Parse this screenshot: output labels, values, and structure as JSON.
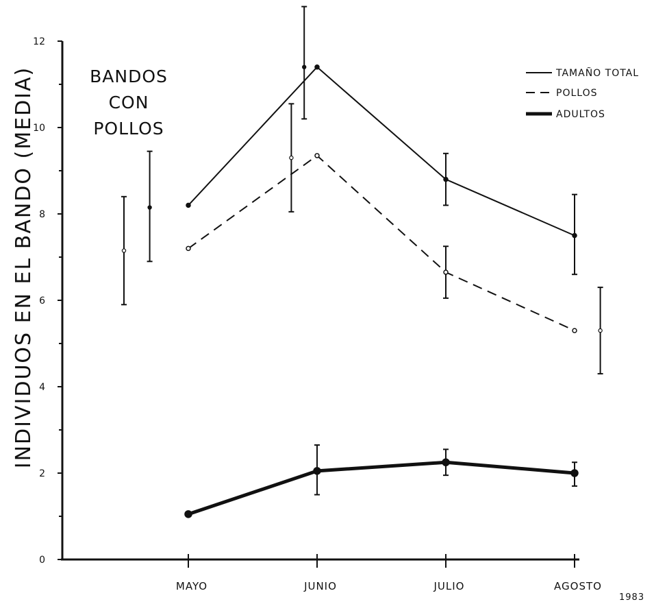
{
  "chart_data": {
    "type": "line",
    "title": "",
    "annotation_lines": [
      "BANDOS",
      "CON",
      "POLLOS"
    ],
    "ylabel": "INDIVIDUOS EN EL BANDO (MEDIA)",
    "xlabel": "",
    "year_label": "1983",
    "ylim": [
      0,
      12
    ],
    "y_ticks": [
      0,
      2,
      4,
      6,
      8,
      10,
      12
    ],
    "y_tick_labels": [
      "0",
      "2",
      "4",
      "6",
      "8",
      "10",
      "12"
    ],
    "categories": [
      "MAYO",
      "JUNIO",
      "JULIO",
      "AGOSTO"
    ],
    "legend_position": "top-right",
    "grid": false,
    "series": [
      {
        "name": "TAMAÑO TOTAL",
        "style": "solid",
        "values": [
          8.2,
          11.4,
          8.8,
          7.5
        ],
        "errors": [
          {
            "offset": -0.3,
            "mean": 8.15,
            "low": 6.9,
            "high": 9.45
          },
          {
            "offset": -0.1,
            "mean": 11.4,
            "low": 10.2,
            "high": 12.8
          },
          {
            "offset": 0,
            "mean": 8.8,
            "low": 8.2,
            "high": 9.4
          },
          {
            "offset": 0,
            "mean": 7.5,
            "low": 6.6,
            "high": 8.45
          }
        ]
      },
      {
        "name": "POLLOS",
        "style": "dashed",
        "values": [
          7.2,
          9.35,
          6.65,
          5.3
        ],
        "errors": [
          {
            "offset": -0.5,
            "mean": 7.15,
            "low": 5.9,
            "high": 8.4
          },
          {
            "offset": -0.2,
            "mean": 9.3,
            "low": 8.05,
            "high": 10.55
          },
          {
            "offset": 0,
            "mean": 6.65,
            "low": 6.05,
            "high": 7.25
          },
          {
            "offset": 0.2,
            "mean": 5.3,
            "low": 4.3,
            "high": 6.3
          }
        ]
      },
      {
        "name": "ADULTOS",
        "style": "thick",
        "values": [
          1.05,
          2.05,
          2.25,
          2.0
        ],
        "errors": [
          null,
          {
            "offset": 0,
            "mean": 2.05,
            "low": 1.5,
            "high": 2.65
          },
          {
            "offset": 0,
            "mean": 2.25,
            "low": 1.95,
            "high": 2.55
          },
          {
            "offset": 0,
            "mean": 2.0,
            "low": 1.7,
            "high": 2.25
          }
        ]
      }
    ]
  }
}
